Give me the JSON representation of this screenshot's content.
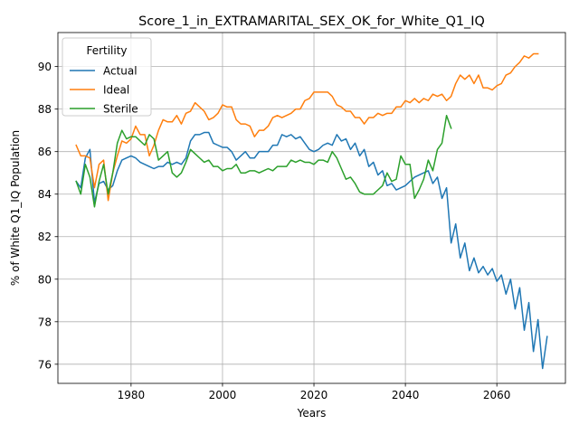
{
  "chart_data": {
    "type": "line",
    "title": "Score_1_in_EXTRAMARITAL_SEX_OK_for_White_Q1_IQ",
    "xlabel": "Years",
    "ylabel": "% of White Q1_IQ Population",
    "xlim": [
      1964,
      2075
    ],
    "ylim": [
      75.1,
      91.6
    ],
    "x_ticks": [
      1980,
      2000,
      2020,
      2040,
      2060
    ],
    "y_ticks": [
      76,
      78,
      80,
      82,
      84,
      86,
      88,
      90
    ],
    "grid": true,
    "legend": {
      "title": "Fertility",
      "position": "top-left"
    },
    "series": [
      {
        "name": "Actual",
        "color": "#1f77b4",
        "x_start": 1968,
        "values": [
          84.6,
          84.3,
          85.7,
          86.1,
          83.6,
          84.5,
          84.6,
          84.2,
          84.4,
          85.1,
          85.6,
          85.7,
          85.8,
          85.7,
          85.5,
          85.4,
          85.3,
          85.2,
          85.3,
          85.3,
          85.5,
          85.4,
          85.5,
          85.4,
          85.7,
          86.5,
          86.8,
          86.8,
          86.9,
          86.9,
          86.4,
          86.3,
          86.2,
          86.2,
          86.0,
          85.6,
          85.8,
          86.0,
          85.7,
          85.7,
          86.0,
          86.0,
          86.0,
          86.3,
          86.3,
          86.8,
          86.7,
          86.8,
          86.6,
          86.7,
          86.4,
          86.1,
          86.0,
          86.1,
          86.3,
          86.4,
          86.3,
          86.8,
          86.5,
          86.6,
          86.1,
          86.4,
          85.8,
          86.1,
          85.3,
          85.5,
          84.9,
          85.1,
          84.4,
          84.5,
          84.2,
          84.3,
          84.4,
          84.6,
          84.8,
          84.9,
          85.0,
          85.1,
          84.5,
          84.8,
          83.8,
          84.3,
          81.7,
          82.6,
          81.0,
          81.7,
          80.4,
          81.0,
          80.3,
          80.6,
          80.2,
          80.5,
          79.9,
          80.2,
          79.3,
          80.0,
          78.6,
          79.6,
          77.6,
          78.9,
          76.6,
          78.1,
          75.8,
          77.3
        ]
      },
      {
        "name": "Ideal",
        "color": "#ff7f0e",
        "x_start": 1968,
        "values": [
          86.3,
          85.8,
          85.8,
          85.7,
          84.3,
          85.4,
          85.6,
          83.7,
          85.0,
          85.8,
          86.5,
          86.4,
          86.6,
          87.2,
          86.8,
          86.8,
          85.8,
          86.3,
          87.0,
          87.5,
          87.4,
          87.4,
          87.7,
          87.3,
          87.8,
          87.9,
          88.3,
          88.1,
          87.9,
          87.5,
          87.6,
          87.8,
          88.2,
          88.1,
          88.1,
          87.5,
          87.3,
          87.3,
          87.2,
          86.7,
          87.0,
          87.0,
          87.2,
          87.6,
          87.7,
          87.6,
          87.7,
          87.8,
          88.0,
          88.0,
          88.4,
          88.5,
          88.8,
          88.8,
          88.8,
          88.8,
          88.6,
          88.2,
          88.1,
          87.9,
          87.9,
          87.6,
          87.6,
          87.3,
          87.6,
          87.6,
          87.8,
          87.7,
          87.8,
          87.8,
          88.1,
          88.1,
          88.4,
          88.3,
          88.5,
          88.3,
          88.5,
          88.4,
          88.7,
          88.6,
          88.7,
          88.4,
          88.6,
          89.2,
          89.6,
          89.4,
          89.6,
          89.2,
          89.6,
          89.0,
          89.0,
          88.9,
          89.1,
          89.2,
          89.6,
          89.7,
          90.0,
          90.2,
          90.5,
          90.4,
          90.6,
          90.6
        ]
      },
      {
        "name": "Sterile",
        "color": "#2ca02c",
        "x_start": 1968,
        "values": [
          84.6,
          84.0,
          85.4,
          84.8,
          83.4,
          84.6,
          85.4,
          84.0,
          85.0,
          86.4,
          87.0,
          86.6,
          86.7,
          86.7,
          86.5,
          86.3,
          86.8,
          86.6,
          85.6,
          85.8,
          86.0,
          85.0,
          84.8,
          85.0,
          85.5,
          86.1,
          85.9,
          85.7,
          85.5,
          85.6,
          85.3,
          85.3,
          85.1,
          85.2,
          85.2,
          85.4,
          85.0,
          85.0,
          85.1,
          85.1,
          85.0,
          85.1,
          85.2,
          85.1,
          85.3,
          85.3,
          85.3,
          85.6,
          85.5,
          85.6,
          85.5,
          85.5,
          85.4,
          85.6,
          85.6,
          85.5,
          86.0,
          85.7,
          85.2,
          84.7,
          84.8,
          84.5,
          84.1,
          84.0,
          84.0,
          84.0,
          84.2,
          84.4,
          85.0,
          84.6,
          84.7,
          85.8,
          85.4,
          85.4,
          83.8,
          84.2,
          84.7,
          85.6,
          85.1,
          86.1,
          86.4,
          87.7,
          87.1
        ]
      }
    ]
  }
}
